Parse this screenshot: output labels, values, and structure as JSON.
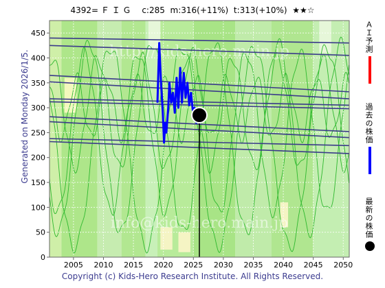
{
  "header": {
    "title": "4392= Ｆ Ｉ Ｇ　 c:285  m:316(+11%)  t:313(+10%)  ★★☆"
  },
  "footer": {
    "copyright": "Copyright (c) Kids-Hero Research Institute. All Rights Reserved."
  },
  "side": {
    "generated": "Generated on Monday 2026/1/5."
  },
  "legend": {
    "ai_label": "ＡＩ予測",
    "past_label": "過去の株価",
    "latest_label": "最新の株価",
    "ai_color": "#ff0000",
    "past_color": "#0000ff",
    "latest_color": "#000000"
  },
  "watermarks": [
    "http://kids-hero.main.jp",
    "info@kids-hero.main.jp"
  ],
  "chart_data": {
    "type": "line",
    "x_range": [
      2001,
      2051
    ],
    "ylim": [
      0,
      475
    ],
    "x_ticks": [
      2005,
      2010,
      2015,
      2020,
      2025,
      2030,
      2035,
      2040,
      2045,
      2050
    ],
    "y_ticks": [
      0,
      50,
      100,
      150,
      200,
      250,
      300,
      350,
      400,
      450
    ],
    "grid": true,
    "current": {
      "x": 2026.0,
      "y": 285
    },
    "ai_prediction": {
      "x_start": 2001,
      "x_end": 2051,
      "mean": 308,
      "amplitude": 10,
      "period": 2.5
    },
    "past_price": [
      [
        2019.0,
        310
      ],
      [
        2019.3,
        430
      ],
      [
        2019.6,
        350
      ],
      [
        2019.9,
        290
      ],
      [
        2020.1,
        230
      ],
      [
        2020.3,
        270
      ],
      [
        2020.5,
        250
      ],
      [
        2020.8,
        300
      ],
      [
        2021.0,
        350
      ],
      [
        2021.3,
        310
      ],
      [
        2021.6,
        330
      ],
      [
        2021.9,
        290
      ],
      [
        2022.2,
        360
      ],
      [
        2022.5,
        300
      ],
      [
        2022.8,
        380
      ],
      [
        2023.1,
        310
      ],
      [
        2023.4,
        370
      ],
      [
        2023.7,
        320
      ],
      [
        2024.0,
        350
      ],
      [
        2024.3,
        305
      ],
      [
        2024.6,
        330
      ],
      [
        2024.9,
        295
      ],
      [
        2025.2,
        300
      ],
      [
        2025.5,
        270
      ],
      [
        2025.8,
        280
      ],
      [
        2026.0,
        285
      ]
    ],
    "trend_lines": [
      {
        "y_start": 440,
        "y_end": 430
      },
      {
        "y_start": 425,
        "y_end": 405
      },
      {
        "y_start": 365,
        "y_end": 332
      },
      {
        "y_start": 352,
        "y_end": 318
      },
      {
        "y_start": 318,
        "y_end": 305
      },
      {
        "y_start": 312,
        "y_end": 298
      },
      {
        "y_start": 282,
        "y_end": 252
      },
      {
        "y_start": 272,
        "y_end": 240
      },
      {
        "y_start": 238,
        "y_end": 224
      },
      {
        "y_start": 232,
        "y_end": 208
      }
    ],
    "background_bands": [
      {
        "from": 2001,
        "to": 2003,
        "color": "#cfefa8"
      },
      {
        "from": 2003,
        "to": 2009,
        "color": "#aee68a"
      },
      {
        "from": 2009,
        "to": 2013,
        "color": "#c6ecb0"
      },
      {
        "from": 2013,
        "to": 2017,
        "color": "#b2e791"
      },
      {
        "from": 2017,
        "to": 2019,
        "color": "#c8f0b8"
      },
      {
        "from": 2019,
        "to": 2025,
        "color": "#b8eb9a"
      },
      {
        "from": 2025,
        "to": 2032,
        "color": "#a8e486"
      },
      {
        "from": 2032,
        "to": 2038,
        "color": "#c0ebaa"
      },
      {
        "from": 2038,
        "to": 2045,
        "color": "#b0e690"
      },
      {
        "from": 2045,
        "to": 2051,
        "color": "#c4eeb2"
      }
    ],
    "pale_patches": [
      {
        "from": 2003.5,
        "to": 2005.5,
        "y_low": 290,
        "y_high": 360,
        "color": "#f3f8bd"
      },
      {
        "from": 2019.5,
        "to": 2021.5,
        "y_low": 15,
        "y_high": 60,
        "color": "#f5f4c4"
      },
      {
        "from": 2022.5,
        "to": 2024.5,
        "y_low": 10,
        "y_high": 50,
        "color": "#f5f4c4"
      },
      {
        "from": 2039.5,
        "to": 2040.8,
        "y_low": 60,
        "y_high": 110,
        "color": "#f5f4c4"
      },
      {
        "from": 2017.5,
        "to": 2019.5,
        "y_low": 420,
        "y_high": 475,
        "color": "#e6f7d9"
      },
      {
        "from": 2046.0,
        "to": 2048.0,
        "y_low": 410,
        "y_high": 475,
        "color": "#e6f7d9"
      }
    ]
  }
}
